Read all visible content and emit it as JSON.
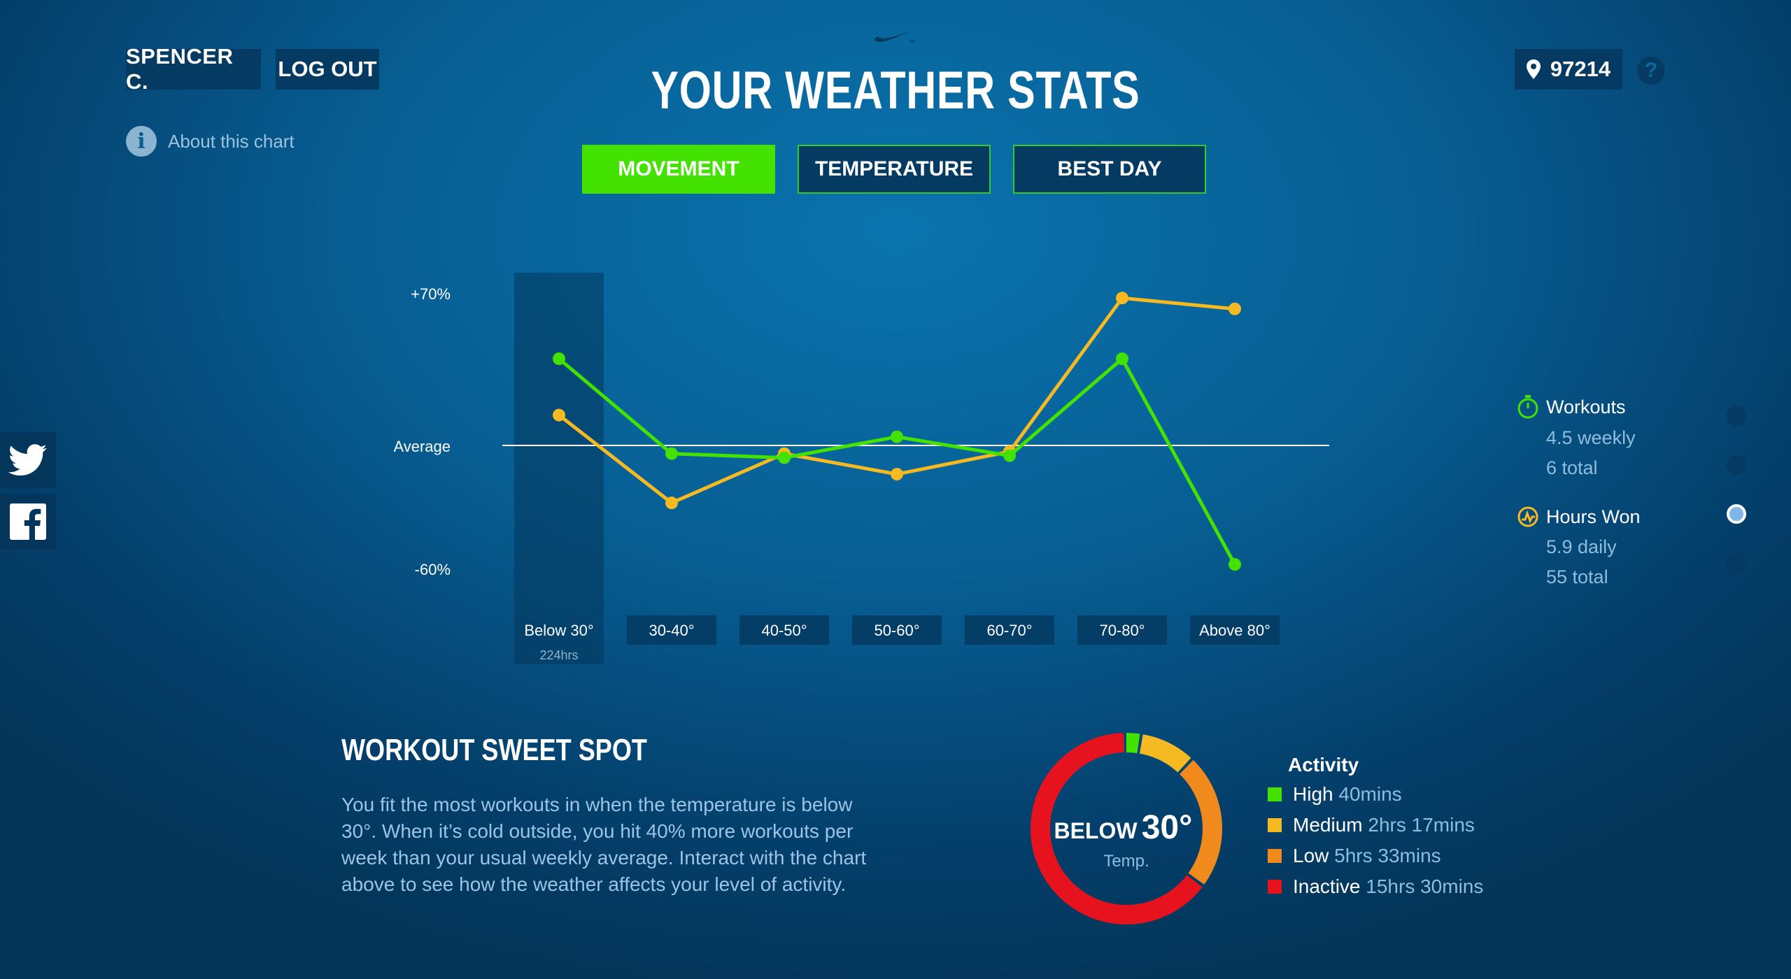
{
  "header": {
    "user_name": "SPENCER C.",
    "logout_label": "LOG OUT",
    "title": "YOUR WEATHER STATS",
    "zip": "97214",
    "help_glyph": "?",
    "about_label": "About this chart",
    "about_glyph": "i"
  },
  "tabs": [
    {
      "label": "MOVEMENT",
      "active": true
    },
    {
      "label": "TEMPERATURE",
      "active": false
    },
    {
      "label": "BEST DAY",
      "active": false
    }
  ],
  "colors": {
    "green": "#43e200",
    "yellow": "#f5b921",
    "orange": "#f08a1d",
    "red": "#e6131f",
    "panel": "#053a62"
  },
  "icons": [
    "nike-plus-logo",
    "location-pin-icon",
    "help-icon",
    "info-icon",
    "twitter-icon",
    "facebook-icon",
    "stopwatch-icon",
    "hours-won-icon"
  ],
  "chart_data": {
    "type": "line",
    "categories": [
      "Below 30°",
      "30-40°",
      "40-50°",
      "50-60°",
      "60-70°",
      "70-80°",
      "Above 80°"
    ],
    "y_tick_labels": {
      "top": "+70%",
      "middle": "Average",
      "bottom": "-60%"
    },
    "ylim": [
      -60,
      70
    ],
    "highlighted_category": "Below 30°",
    "highlighted_sub_label": "224hrs",
    "series": [
      {
        "name": "Workouts",
        "color": "#43e200",
        "values": [
          40,
          -4,
          -6,
          4,
          -5,
          40,
          -58
        ]
      },
      {
        "name": "Hours Won",
        "color": "#f5b921",
        "values": [
          14,
          -28,
          -4,
          -14,
          -3,
          68,
          63
        ]
      }
    ]
  },
  "legend": {
    "workouts": {
      "title": "Workouts",
      "line1": "4.5 weekly",
      "line2": "6 total"
    },
    "hours_won": {
      "title": "Hours Won",
      "line1": "5.9 daily",
      "line2": "55 total"
    },
    "nav_dots_active_index": 2
  },
  "sweet_spot": {
    "title": "WORKOUT SWEET SPOT",
    "text": "You fit the most workouts in when the temperature is below 30°. When it’s cold outside, you hit 40% more workouts per week than your usual weekly average. Interact with the chart above to see how the weather affects your level of activity."
  },
  "donut": {
    "label_prefix": "BELOW",
    "label_value": "30°",
    "sub_label": "Temp.",
    "segments_minutes": [
      40,
      137,
      333,
      930
    ]
  },
  "activity": {
    "title": "Activity",
    "rows": [
      {
        "label": "High",
        "value": "40mins",
        "color": "#43e200"
      },
      {
        "label": "Medium",
        "value": "2hrs 17mins",
        "color": "#f5b921"
      },
      {
        "label": "Low",
        "value": "5hrs 33mins",
        "color": "#f08a1d"
      },
      {
        "label": "Inactive",
        "value": "15hrs 30mins",
        "color": "#e6131f"
      }
    ]
  }
}
